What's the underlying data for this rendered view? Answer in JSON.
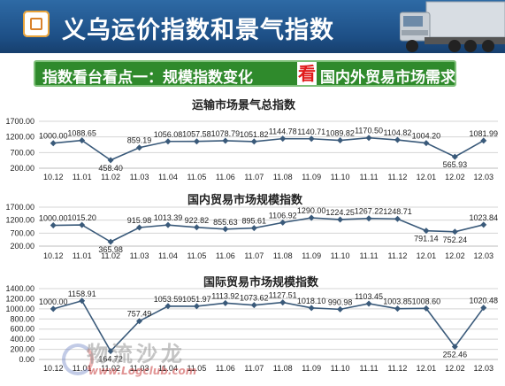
{
  "header": {
    "title": "义乌运价指数和景气指数"
  },
  "banner": {
    "part1": "指数看台看点一：规模指数变化",
    "highlight": "看",
    "part2": "国内外贸易市场需求"
  },
  "watermark": {
    "text": "物流沙龙",
    "url": "www.Logclub.com"
  },
  "colors": {
    "line": "#3a5a7a",
    "header_bg": "#1d4f86",
    "banner_bg": "#2f8a2c",
    "highlight": "#e01b1b"
  },
  "chart_data": [
    {
      "type": "line",
      "title": "运输市场景气总指数",
      "categories": [
        "10.12",
        "11.01",
        "11.02",
        "11.03",
        "11.04",
        "11.05",
        "11.06",
        "11.07",
        "11.08",
        "11.09",
        "11.10",
        "11.11",
        "11.12",
        "12.01",
        "12.02",
        "12.03"
      ],
      "values": [
        1000.0,
        1088.65,
        458.4,
        859.19,
        1056.08,
        1057.58,
        1078.79,
        1051.82,
        1144.78,
        1140.71,
        1089.82,
        1170.5,
        1104.82,
        1004.2,
        565.93,
        1081.99
      ],
      "yticks": [
        "1700.00",
        "1200.00",
        "700.00",
        "200.00"
      ],
      "ylim": [
        200,
        1700
      ],
      "grid": true
    },
    {
      "type": "line",
      "title": "国内贸易市场规模指数",
      "categories": [
        "10.12",
        "11.01",
        "11.02",
        "11.03",
        "11.04",
        "11.05",
        "11.06",
        "11.07",
        "11.08",
        "11.09",
        "11.10",
        "11.11",
        "11.12",
        "12.01",
        "12.02",
        "12.03"
      ],
      "values": [
        1000.0,
        1015.2,
        365.98,
        915.98,
        1013.39,
        922.82,
        855.63,
        895.61,
        1106.92,
        1290.0,
        1224.25,
        1267.22,
        1248.71,
        791.14,
        752.24,
        1023.84
      ],
      "yticks": [
        "1700.00",
        "1200.00",
        "700.00",
        "200.00"
      ],
      "ylim": [
        200,
        1700
      ],
      "grid": true
    },
    {
      "type": "line",
      "title": "国际贸易市场规模指数",
      "categories": [
        "10.12",
        "11.01",
        "11.02",
        "11.03",
        "11.04",
        "11.05",
        "11.06",
        "11.07",
        "11.08",
        "11.09",
        "11.10",
        "11.11",
        "11.12",
        "12.01",
        "12.02",
        "12.03"
      ],
      "values": [
        1000.0,
        1158.91,
        164.72,
        757.49,
        1053.59,
        1051.97,
        1113.92,
        1073.62,
        1127.51,
        1018.1,
        990.98,
        1103.45,
        1003.85,
        1008.6,
        252.46,
        1020.48
      ],
      "yticks": [
        "1400.00",
        "1200.00",
        "1000.00",
        "800.00",
        "600.00",
        "400.00",
        "200.00",
        "0.00"
      ],
      "ylim": [
        0,
        1400
      ],
      "grid": true
    }
  ]
}
